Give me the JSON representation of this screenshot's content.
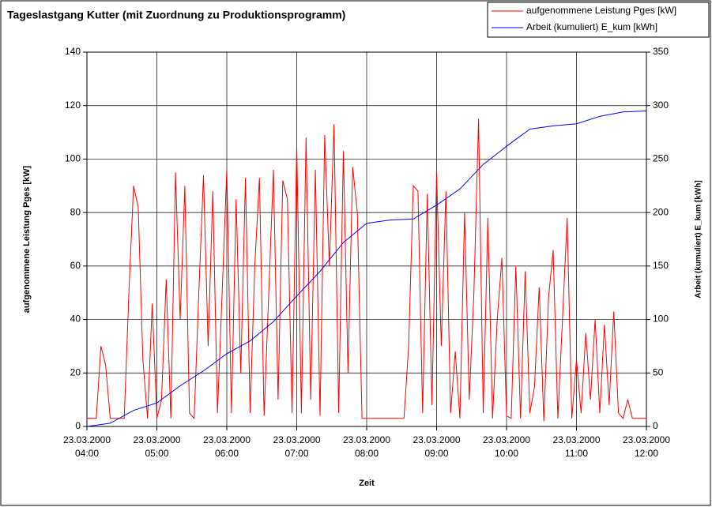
{
  "chart_data": {
    "type": "line",
    "title": "Tageslastgang Kutter (mit Zuordnung zu Produktionsprogramm)",
    "xlabel": "Zeit",
    "ylabel": "aufgenommene Leistung Pges [kW]",
    "y2label": "Arbeit (kumuliert) E_kum [kWh]",
    "x": [
      "23.03.2000 04:00",
      "23.03.2000 04:04",
      "23.03.2000 04:08",
      "23.03.2000 04:12",
      "23.03.2000 04:16",
      "23.03.2000 04:20",
      "23.03.2000 04:24",
      "23.03.2000 04:28",
      "23.03.2000 04:32",
      "23.03.2000 04:36",
      "23.03.2000 04:40",
      "23.03.2000 04:44",
      "23.03.2000 04:48",
      "23.03.2000 04:52",
      "23.03.2000 04:56",
      "23.03.2000 05:00",
      "23.03.2000 05:04",
      "23.03.2000 05:08",
      "23.03.2000 05:12",
      "23.03.2000 05:16",
      "23.03.2000 05:20",
      "23.03.2000 05:24",
      "23.03.2000 05:28",
      "23.03.2000 05:32",
      "23.03.2000 05:36",
      "23.03.2000 05:40",
      "23.03.2000 05:44",
      "23.03.2000 05:48",
      "23.03.2000 05:52",
      "23.03.2000 05:56",
      "23.03.2000 06:00",
      "23.03.2000 06:04",
      "23.03.2000 06:08",
      "23.03.2000 06:12",
      "23.03.2000 06:16",
      "23.03.2000 06:20",
      "23.03.2000 06:24",
      "23.03.2000 06:28",
      "23.03.2000 06:32",
      "23.03.2000 06:36",
      "23.03.2000 06:40",
      "23.03.2000 06:44",
      "23.03.2000 06:48",
      "23.03.2000 06:52",
      "23.03.2000 06:56",
      "23.03.2000 07:00",
      "23.03.2000 07:04",
      "23.03.2000 07:08",
      "23.03.2000 07:12",
      "23.03.2000 07:16",
      "23.03.2000 07:20",
      "23.03.2000 07:24",
      "23.03.2000 07:28",
      "23.03.2000 07:32",
      "23.03.2000 07:36",
      "23.03.2000 07:40",
      "23.03.2000 07:44",
      "23.03.2000 07:48",
      "23.03.2000 07:52",
      "23.03.2000 07:56",
      "23.03.2000 08:00",
      "23.03.2000 08:04",
      "23.03.2000 08:08",
      "23.03.2000 08:12",
      "23.03.2000 08:16",
      "23.03.2000 08:20",
      "23.03.2000 08:24",
      "23.03.2000 08:28",
      "23.03.2000 08:32",
      "23.03.2000 08:36",
      "23.03.2000 08:40",
      "23.03.2000 08:44",
      "23.03.2000 08:48",
      "23.03.2000 08:52",
      "23.03.2000 08:56",
      "23.03.2000 09:00",
      "23.03.2000 09:04",
      "23.03.2000 09:08",
      "23.03.2000 09:12",
      "23.03.2000 09:16",
      "23.03.2000 09:20",
      "23.03.2000 09:24",
      "23.03.2000 09:28",
      "23.03.2000 09:32",
      "23.03.2000 09:36",
      "23.03.2000 09:40",
      "23.03.2000 09:44",
      "23.03.2000 09:48",
      "23.03.2000 09:52",
      "23.03.2000 09:56",
      "23.03.2000 10:00",
      "23.03.2000 10:04",
      "23.03.2000 10:08",
      "23.03.2000 10:12",
      "23.03.2000 10:16",
      "23.03.2000 10:20",
      "23.03.2000 10:24",
      "23.03.2000 10:28",
      "23.03.2000 10:32",
      "23.03.2000 10:36",
      "23.03.2000 10:40",
      "23.03.2000 10:44",
      "23.03.2000 10:48",
      "23.03.2000 10:52",
      "23.03.2000 10:56",
      "23.03.2000 11:00",
      "23.03.2000 11:04",
      "23.03.2000 11:08",
      "23.03.2000 11:12",
      "23.03.2000 11:16",
      "23.03.2000 11:20",
      "23.03.2000 11:24",
      "23.03.2000 11:28",
      "23.03.2000 11:32",
      "23.03.2000 11:36",
      "23.03.2000 11:40",
      "23.03.2000 11:44",
      "23.03.2000 11:48",
      "23.03.2000 11:52",
      "23.03.2000 11:56",
      "23.03.2000 12:00"
    ],
    "series": [
      {
        "name": "aufgenommene Leistung Pges [kW]",
        "color": "#ff0000",
        "values": [
          3,
          3,
          3,
          30,
          23,
          3,
          3,
          3,
          3,
          50,
          90,
          82,
          25,
          3,
          46,
          3,
          10,
          55,
          3,
          95,
          40,
          90,
          5,
          3,
          50,
          94,
          30,
          88,
          5,
          50,
          96,
          5,
          85,
          20,
          93,
          5,
          60,
          93,
          4,
          50,
          96,
          10,
          92,
          85,
          5,
          105,
          5,
          108,
          10,
          96,
          4,
          109,
          60,
          113,
          5,
          103,
          20,
          97,
          80,
          3,
          3,
          3,
          3,
          3,
          3,
          3,
          3,
          3,
          3,
          30,
          90,
          88,
          5,
          87,
          8,
          95,
          30,
          88,
          5,
          28,
          3,
          80,
          10,
          50,
          115,
          5,
          78,
          3,
          40,
          63,
          4,
          3,
          60,
          3,
          58,
          5,
          15,
          52,
          2,
          48,
          66,
          3,
          40,
          78,
          3,
          25,
          5,
          35,
          10,
          40,
          5,
          38,
          8,
          43,
          5,
          3,
          10,
          3,
          3,
          3,
          3
        ]
      },
      {
        "name": "Arbeit (kumuliert) E_kum [kWh]",
        "color": "#0000ff",
        "axis": "y2",
        "x": [
          "23.03.2000 04:00",
          "23.03.2000 04:20",
          "23.03.2000 04:40",
          "23.03.2000 05:00",
          "23.03.2000 05:20",
          "23.03.2000 05:40",
          "23.03.2000 06:00",
          "23.03.2000 06:20",
          "23.03.2000 06:40",
          "23.03.2000 07:00",
          "23.03.2000 07:20",
          "23.03.2000 07:40",
          "23.03.2000 08:00",
          "23.03.2000 08:20",
          "23.03.2000 08:40",
          "23.03.2000 09:00",
          "23.03.2000 09:20",
          "23.03.2000 09:40",
          "23.03.2000 10:00",
          "23.03.2000 10:20",
          "23.03.2000 10:40",
          "23.03.2000 11:00",
          "23.03.2000 11:20",
          "23.03.2000 11:40",
          "23.03.2000 12:00"
        ],
        "values": [
          0,
          3,
          15,
          22,
          38,
          52,
          68,
          80,
          98,
          122,
          145,
          172,
          190,
          193,
          194,
          207,
          222,
          245,
          262,
          278,
          281,
          283,
          290,
          294,
          295
        ]
      }
    ],
    "xlim": [
      "23.03.2000 04:00",
      "23.03.2000 12:00"
    ],
    "xticks": [
      "23.03.2000 04:00",
      "23.03.2000 05:00",
      "23.03.2000 06:00",
      "23.03.2000 07:00",
      "23.03.2000 08:00",
      "23.03.2000 09:00",
      "23.03.2000 10:00",
      "23.03.2000 11:00",
      "23.03.2000 12:00"
    ],
    "ylim": [
      0,
      140
    ],
    "yticks": [
      0,
      20,
      40,
      60,
      80,
      100,
      120,
      140
    ],
    "y2lim": [
      0,
      350
    ],
    "y2ticks": [
      0,
      50,
      100,
      150,
      200,
      250,
      300,
      350
    ],
    "grid": true,
    "legend": "top-right"
  }
}
